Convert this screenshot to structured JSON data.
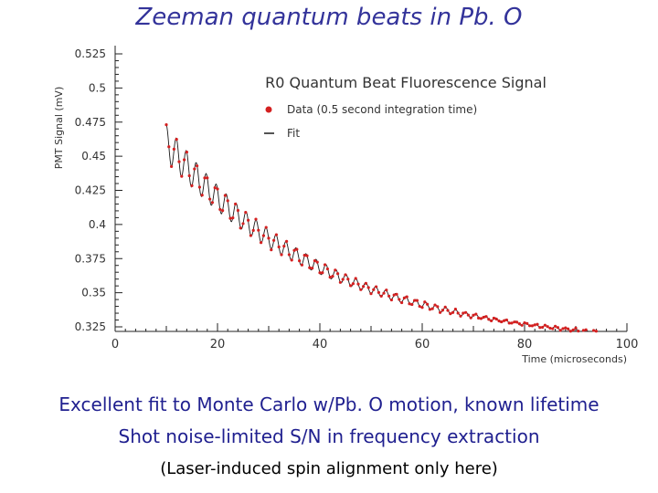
{
  "slide": {
    "title": "Zeeman quantum beats in Pb. O",
    "bullets": [
      "Excellent fit to Monte Carlo w/Pb. O motion, known lifetime",
      "Shot noise-limited S/N in frequency extraction",
      "(Laser-induced spin alignment only here)"
    ]
  },
  "colors": {
    "title": "#33339a",
    "data": "#d42020",
    "fit": "#1a1a1a",
    "axis": "#222222"
  },
  "chart_data": {
    "type": "scatter",
    "title": "R0 Quantum Beat Fluorescence Signal",
    "xlabel": "Time (microseconds)",
    "ylabel": "PMT Signal (mV)",
    "xlim": [
      0,
      100
    ],
    "ylim": [
      0.32,
      0.53
    ],
    "xticks": [
      "0",
      "20",
      "40",
      "60",
      "80",
      "100"
    ],
    "xtick_values": [
      0,
      20,
      40,
      60,
      80,
      100
    ],
    "yticks": [
      "0.525",
      "0.5",
      "0.475",
      "0.45",
      "0.425",
      "0.4",
      "0.375",
      "0.35",
      "0.325"
    ],
    "ytick_values": [
      0.525,
      0.5,
      0.475,
      0.45,
      0.425,
      0.4,
      0.375,
      0.35,
      0.325
    ],
    "legend": {
      "position": "top-right",
      "entries": [
        {
          "label": "Data (0.5 second integration time)",
          "marker": "dot"
        },
        {
          "label": "Fit",
          "marker": "line"
        }
      ]
    },
    "series": [
      {
        "name": "Data",
        "x_start": 10,
        "x_end": 100,
        "x_step": 0.5,
        "model": {
          "baseline": 0.311,
          "amplitude": 0.2233,
          "tau_us": 31.2,
          "beat_amplitude": 0.0262,
          "beat_tau_us": 29.0,
          "beat_period_us": 1.95,
          "t0_us": 10
        }
      },
      {
        "name": "Fit",
        "x_start": 10,
        "x_end": 100,
        "x_step": 0.125,
        "model": "same"
      }
    ]
  }
}
